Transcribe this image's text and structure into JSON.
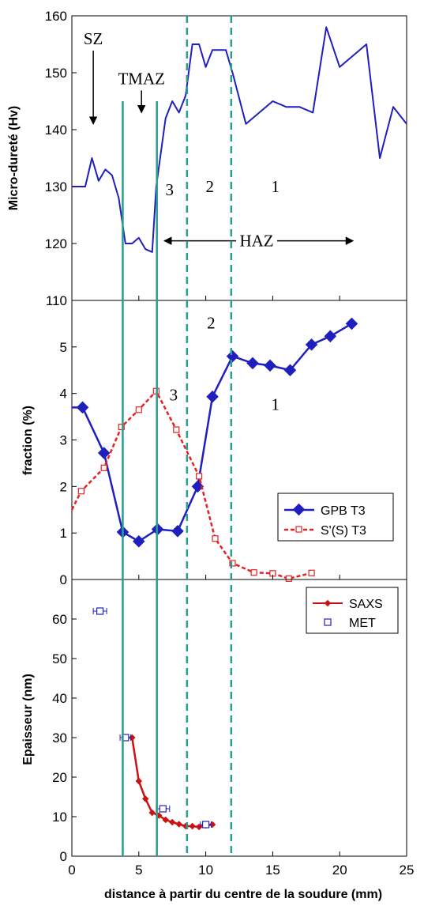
{
  "xlabel": "distance à partir du centre de la soudure (mm)",
  "xlim": [
    0,
    25
  ],
  "xticks": [
    "0",
    "5",
    "10",
    "15",
    "20",
    "25"
  ],
  "zone_lines": {
    "solid": [
      3.8,
      6.35
    ],
    "dashed": [
      8.6,
      11.9
    ],
    "solid_color": "#2a9d8f",
    "dashed_color": "#2a9d8f"
  },
  "chart_data": [
    {
      "type": "line",
      "ylabel": "Micro-dureté (Hv)",
      "ylim": [
        110,
        160
      ],
      "yticks": [
        "110",
        "120",
        "130",
        "140",
        "150",
        "160"
      ],
      "series": [
        {
          "color": "#1f1fbf",
          "x": [
            0,
            1,
            1.5,
            2,
            2.5,
            3,
            3.5,
            4,
            4.5,
            5,
            5.5,
            6,
            6.3,
            7,
            7.5,
            8,
            8.5,
            9,
            9.5,
            10,
            10.5,
            11,
            11.5,
            12,
            13,
            14,
            15,
            16,
            17,
            18,
            19,
            20,
            21,
            22,
            23,
            24,
            25
          ],
          "y": [
            130,
            130,
            135,
            131,
            133,
            132,
            128,
            120,
            120,
            121,
            119,
            118.5,
            130,
            142,
            145,
            143,
            146,
            155,
            155,
            151,
            154,
            154,
            154,
            150,
            141,
            143,
            145,
            144,
            144,
            143,
            158,
            151,
            153,
            155,
            135,
            144,
            141
          ]
        }
      ],
      "annotations": [
        {
          "text": "SZ",
          "x": 1.6,
          "y": 155,
          "arrow_to_y": 141
        },
        {
          "text": "TMAZ",
          "x": 5.2,
          "y": 148,
          "arrow_to_y": 143
        },
        {
          "text": "3",
          "x": 7.3,
          "y": 128.5
        },
        {
          "text": "2",
          "x": 10.3,
          "y": 129
        },
        {
          "text": "1",
          "x": 15.2,
          "y": 129
        },
        {
          "text": "HAZ",
          "x": 13.8,
          "y": 119.5,
          "arrow_from_x": 6.9,
          "arrow_to_x": 21
        }
      ]
    },
    {
      "type": "line",
      "ylabel": "fraction (%)",
      "ylim": [
        0,
        6
      ],
      "yticks": [
        "0",
        "1",
        "2",
        "3",
        "4",
        "5"
      ],
      "series": [
        {
          "name": "GPB T3",
          "color": "#1f1fbf",
          "style": "solid-diamond",
          "x": [
            0,
            0.8,
            2.4,
            3.8,
            5,
            6.4,
            7.9,
            9.4,
            10.5,
            12,
            13.5,
            14.8,
            16.3,
            17.9,
            19.3,
            20.9
          ],
          "y": [
            3.7,
            3.7,
            2.72,
            1.02,
            0.82,
            1.08,
            1.04,
            2.0,
            3.93,
            4.8,
            4.65,
            4.6,
            4.5,
            5.05,
            5.23,
            5.5
          ]
        },
        {
          "name": "S'(S) T3",
          "color": "#e52222",
          "style": "dashed-square",
          "x": [
            0,
            0.7,
            2.4,
            3.7,
            5,
            6.3,
            7.8,
            9.5,
            10.7,
            12,
            13.6,
            15,
            16.2,
            17.9
          ],
          "y": [
            1.5,
            1.9,
            2.4,
            3.28,
            3.65,
            4.05,
            3.22,
            2.22,
            0.88,
            0.35,
            0.15,
            0.13,
            0.02,
            0.14
          ]
        }
      ],
      "annotations": [
        {
          "text": "3",
          "x": 7.6,
          "y": 3.85
        },
        {
          "text": "2",
          "x": 10.4,
          "y": 5.4
        },
        {
          "text": "1",
          "x": 15.2,
          "y": 3.65
        }
      ]
    },
    {
      "type": "scatter",
      "ylabel": "Epaisseur (nm)",
      "ylim": [
        0,
        70
      ],
      "yticks": [
        "0",
        "10",
        "20",
        "30",
        "40",
        "50",
        "60"
      ],
      "series": [
        {
          "name": "SAXS",
          "color": "#cc1111",
          "style": "line-marker",
          "x": [
            4.5,
            5.0,
            5.5,
            6.0,
            6.5,
            7.0,
            7.5,
            8.0,
            8.5,
            9.0,
            9.5,
            10.0,
            10.5
          ],
          "y": [
            30,
            19,
            14.5,
            11,
            10.3,
            9.2,
            8.6,
            8.1,
            7.6,
            7.6,
            7.4,
            7.8,
            8.0
          ]
        },
        {
          "name": "MET",
          "color": "#2222bb",
          "style": "open-square-errorbar",
          "x": [
            2.1,
            4.0,
            6.8,
            10.0
          ],
          "y": [
            62,
            30,
            12,
            8
          ],
          "xerr": [
            0.5,
            0.4,
            0.5,
            0.4
          ]
        }
      ]
    }
  ]
}
